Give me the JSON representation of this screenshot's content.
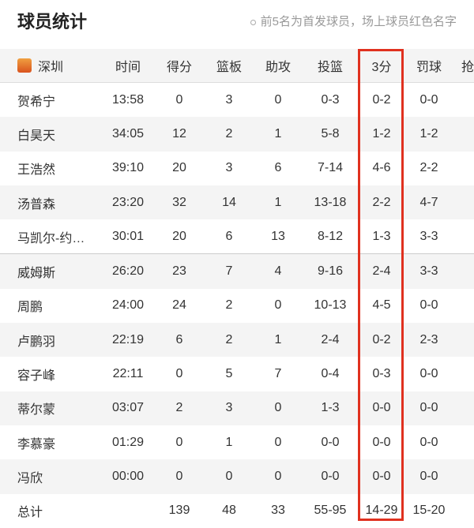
{
  "title": "球员统计",
  "note": "前5名为首发球员，场上球员红色名字",
  "team": {
    "name": "深圳",
    "logo_icon": "tigers-logo"
  },
  "headers": [
    "时间",
    "得分",
    "篮板",
    "助攻",
    "投篮",
    "3分",
    "罚球",
    "抢"
  ],
  "highlight_color": "#e0311f",
  "rows": [
    [
      "贺希宁",
      "13:58",
      "0",
      "3",
      "0",
      "0-3",
      "0-2",
      "0-0"
    ],
    [
      "白昊天",
      "34:05",
      "12",
      "2",
      "1",
      "5-8",
      "1-2",
      "1-2"
    ],
    [
      "王浩然",
      "39:10",
      "20",
      "3",
      "6",
      "7-14",
      "4-6",
      "2-2"
    ],
    [
      "汤普森",
      "23:20",
      "32",
      "14",
      "1",
      "13-18",
      "2-2",
      "4-7"
    ],
    [
      "马凯尔-约…",
      "30:01",
      "20",
      "6",
      "13",
      "8-12",
      "1-3",
      "3-3"
    ],
    [
      "威姆斯",
      "26:20",
      "23",
      "7",
      "4",
      "9-16",
      "2-4",
      "3-3"
    ],
    [
      "周鹏",
      "24:00",
      "24",
      "2",
      "0",
      "10-13",
      "4-5",
      "0-0"
    ],
    [
      "卢鹏羽",
      "22:19",
      "6",
      "2",
      "1",
      "2-4",
      "0-2",
      "2-3"
    ],
    [
      "容子峰",
      "22:11",
      "0",
      "5",
      "7",
      "0-4",
      "0-3",
      "0-0"
    ],
    [
      "蒂尔蒙",
      "03:07",
      "2",
      "3",
      "0",
      "1-3",
      "0-0",
      "0-0"
    ],
    [
      "李慕豪",
      "01:29",
      "0",
      "1",
      "0",
      "0-0",
      "0-0",
      "0-0"
    ],
    [
      "冯欣",
      "00:00",
      "0",
      "0",
      "0",
      "0-0",
      "0-0",
      "0-0"
    ]
  ],
  "total": [
    "总计",
    "",
    "139",
    "48",
    "33",
    "55-95",
    "14-29",
    "15-20"
  ]
}
